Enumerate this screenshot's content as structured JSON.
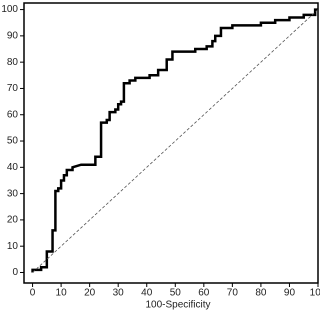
{
  "chart_data": {
    "type": "line",
    "x_label": "100-Specificity",
    "xlim": [
      -3,
      100
    ],
    "ylim": [
      -4,
      102.5
    ],
    "xticks": [
      0,
      10,
      20,
      30,
      40,
      50,
      60,
      70,
      80,
      90,
      100
    ],
    "yticks": [
      0,
      10,
      20,
      30,
      40,
      50,
      60,
      70,
      80,
      90,
      100
    ],
    "series": [
      {
        "color": "#000000",
        "style": "solid",
        "x": [
          0,
          0,
          3,
          3,
          5,
          5,
          7,
          7,
          8,
          8,
          9,
          9,
          10,
          10,
          11,
          11,
          12,
          12,
          14,
          14,
          17,
          20,
          22,
          22,
          24,
          24,
          26,
          26,
          27,
          27,
          29,
          29,
          30,
          30,
          31,
          31,
          32,
          32,
          34,
          34,
          36,
          36,
          41,
          41,
          44,
          44,
          47,
          47,
          49,
          49,
          53,
          53,
          57,
          57,
          61,
          61,
          63,
          63,
          64,
          64,
          66,
          66,
          70,
          70,
          76,
          76,
          80,
          80,
          85,
          85,
          90,
          90,
          95,
          95,
          99,
          99,
          100
        ],
        "values": [
          0,
          1,
          1,
          2,
          2,
          8,
          8,
          16,
          16,
          31,
          31,
          32,
          32,
          35,
          35,
          37,
          37,
          39,
          39,
          40,
          41,
          41,
          41,
          44,
          44,
          57,
          57,
          58,
          58,
          61,
          61,
          62,
          62,
          64,
          64,
          65,
          65,
          72,
          72,
          73,
          73,
          74,
          74,
          75,
          75,
          77,
          77,
          81,
          81,
          84,
          84,
          84,
          84,
          85,
          85,
          86,
          86,
          88,
          88,
          90,
          90,
          93,
          93,
          94,
          94,
          94,
          94,
          95,
          95,
          96,
          96,
          97,
          97,
          98,
          98,
          100,
          100
        ]
      },
      {
        "color": "#555555",
        "style": "dashed",
        "x": [
          0,
          100
        ],
        "values": [
          0,
          100
        ]
      }
    ]
  }
}
